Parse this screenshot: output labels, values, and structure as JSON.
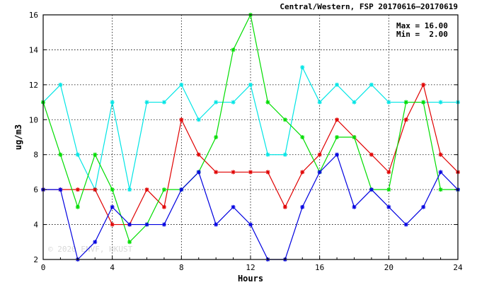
{
  "chart_data": {
    "type": "line",
    "title": "Central/Western, FSP 20170616–20170619",
    "xlabel": "Hours",
    "ylabel": "ug/m3",
    "xlim": [
      0,
      24
    ],
    "ylim": [
      2,
      16
    ],
    "x_ticks": [
      0,
      4,
      8,
      12,
      16,
      20,
      24
    ],
    "y_ticks": [
      2,
      4,
      6,
      8,
      10,
      12,
      14,
      16
    ],
    "grid": true,
    "stats": {
      "max_text": "Max = 16.00",
      "min_text": "Min =  2.00"
    },
    "watermark": "© 2020 ENVF, HKUST",
    "x": [
      0,
      1,
      2,
      3,
      4,
      5,
      6,
      7,
      8,
      9,
      10,
      11,
      12,
      13,
      14,
      15,
      16,
      17,
      18,
      19,
      20,
      21,
      22,
      23,
      24
    ],
    "series": [
      {
        "color": "#00e5e5",
        "values": [
          11,
          12,
          8,
          6,
          11,
          6,
          11,
          11,
          12,
          10,
          11,
          11,
          12,
          8,
          8,
          13,
          11,
          12,
          11,
          12,
          11,
          11,
          11,
          11,
          11
        ]
      },
      {
        "color": "#e00000",
        "values": [
          6,
          6,
          6,
          6,
          4,
          4,
          6,
          5,
          10,
          8,
          7,
          7,
          7,
          7,
          5,
          7,
          8,
          10,
          9,
          8,
          7,
          10,
          12,
          8,
          7
        ]
      },
      {
        "color": "#00dd00",
        "values": [
          11,
          8,
          5,
          8,
          6,
          3,
          4,
          6,
          6,
          7,
          9,
          14,
          16,
          11,
          10,
          9,
          7,
          9,
          9,
          6,
          6,
          11,
          11,
          6,
          6
        ]
      },
      {
        "color": "#0000e0",
        "values": [
          6,
          6,
          2,
          3,
          5,
          4,
          4,
          4,
          6,
          7,
          4,
          5,
          4,
          2,
          2,
          5,
          7,
          8,
          5,
          6,
          5,
          4,
          5,
          7,
          6
        ]
      }
    ]
  }
}
